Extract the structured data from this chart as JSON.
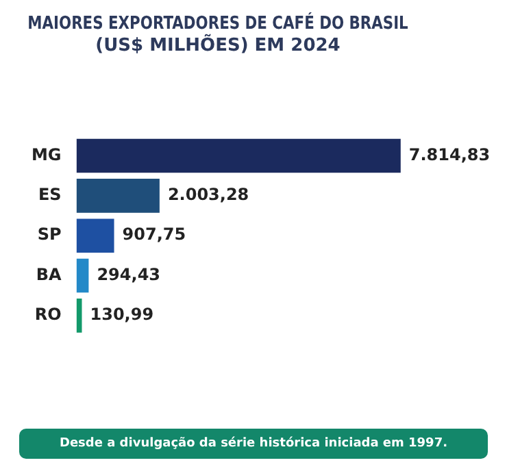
{
  "chart_data": {
    "type": "bar",
    "orientation": "horizontal",
    "tick_labels": "y",
    "title": "MAIORES EXPORTADORES DE CAFÉ DO BRASIL\n(US$ MILHÕES) EM 2024",
    "categories": [
      "MG",
      "ES",
      "SP",
      "BA",
      "RO"
    ],
    "values": [
      7814.83,
      2003.28,
      907.75,
      294.43,
      130.99
    ],
    "value_labels": [
      "7.814,83",
      "2.003,28",
      "907,75",
      "294,43",
      "130,99"
    ],
    "colors": [
      "#1b2a5e",
      "#1f4e7a",
      "#1e50a2",
      "#2389c8",
      "#13996a"
    ],
    "annotations": [
      "Desde a divulgação da série histórica iniciada em 1997."
    ],
    "legend": false
  }
}
